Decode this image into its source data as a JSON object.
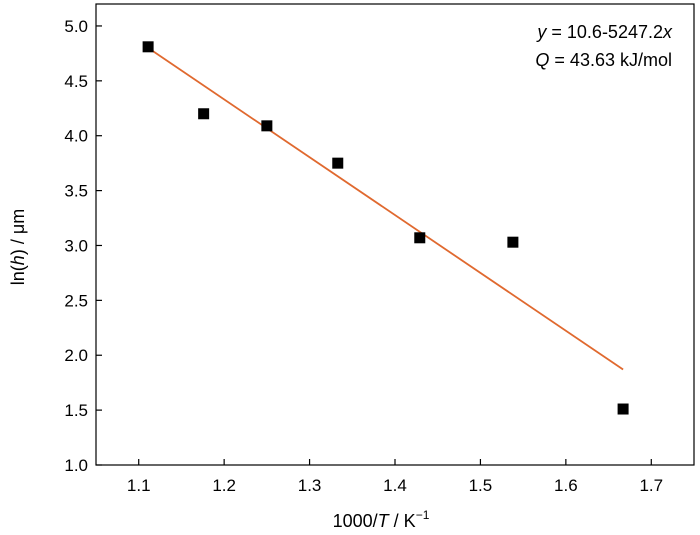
{
  "chart_data": {
    "type": "scatter",
    "xlabel": {
      "pre": "1000/",
      "var": "T",
      "post": " / K",
      "sup": "−1"
    },
    "ylabel": {
      "pre": "ln(",
      "var": "h",
      "post": ") / μm"
    },
    "xlim": [
      1.05,
      1.75
    ],
    "ylim": [
      1.0,
      5.2
    ],
    "x_ticks": [
      "1.1",
      "1.2",
      "1.3",
      "1.4",
      "1.5",
      "1.6",
      "1.7"
    ],
    "y_ticks": [
      "1.0",
      "1.5",
      "2.0",
      "2.5",
      "3.0",
      "3.5",
      "4.0",
      "4.5",
      "5.0"
    ],
    "grid": false,
    "points": [
      {
        "x": 1.111,
        "y": 4.81
      },
      {
        "x": 1.176,
        "y": 4.2
      },
      {
        "x": 1.25,
        "y": 4.09
      },
      {
        "x": 1.333,
        "y": 3.75
      },
      {
        "x": 1.429,
        "y": 3.07
      },
      {
        "x": 1.538,
        "y": 3.03
      },
      {
        "x": 1.667,
        "y": 1.51
      }
    ],
    "fit_line": {
      "x": [
        1.111,
        1.667
      ],
      "y": [
        4.8,
        1.87
      ],
      "color": "#e0692f"
    },
    "marker_color": "#000000",
    "annotations": {
      "equation": {
        "lhs": "y",
        "rhs": " = 10.6-5247.2",
        "var": "x"
      },
      "activation": {
        "lhs": "Q",
        "rhs": " = 43.63 kJ/mol"
      }
    }
  }
}
